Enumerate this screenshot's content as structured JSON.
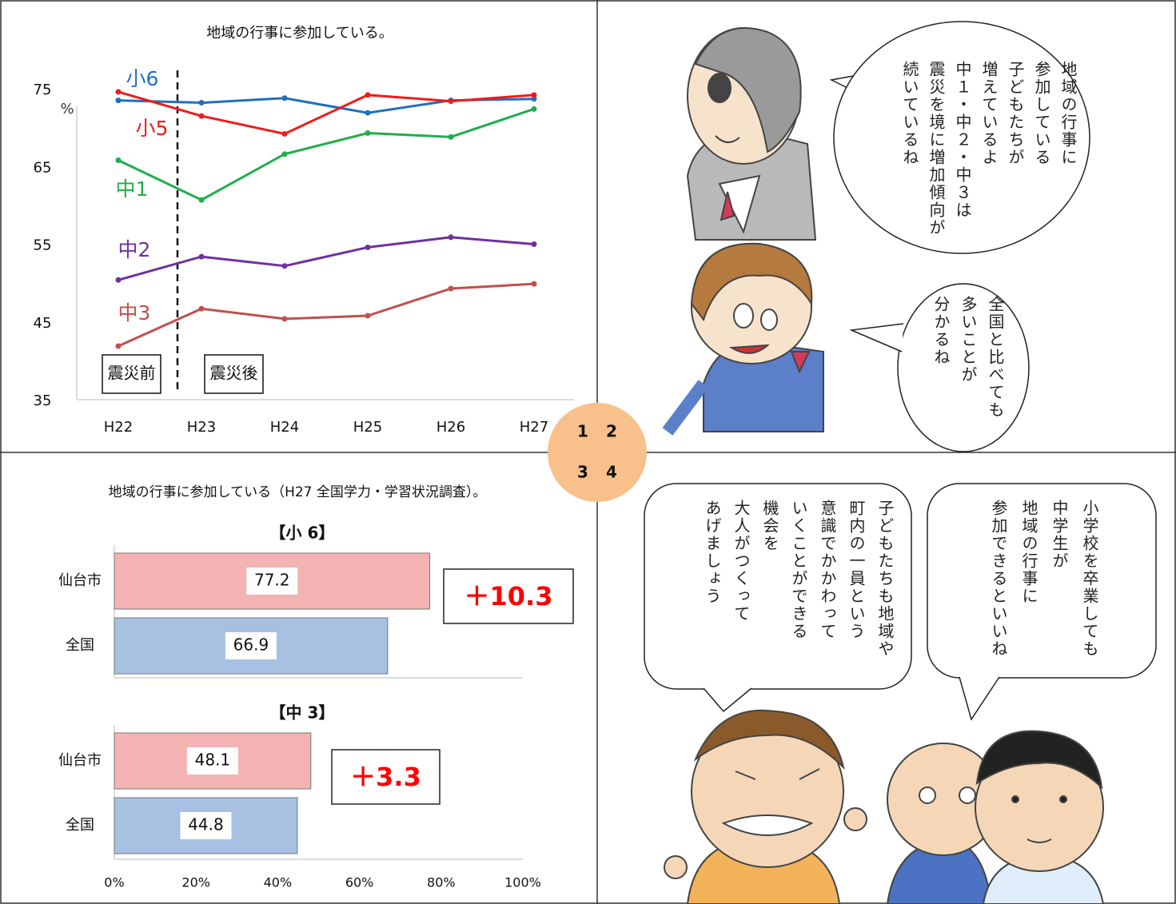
{
  "chart_data": [
    {
      "type": "line",
      "title": "地域の行事に参加している。",
      "y_unit": "%",
      "categories": [
        "H22",
        "H23",
        "H24",
        "H25",
        "H26",
        "H27"
      ],
      "series": [
        {
          "name": "小6",
          "color": "#1f6fbf",
          "values": [
            73.7,
            73.4,
            74.0,
            72.1,
            73.7,
            73.9
          ]
        },
        {
          "name": "小5",
          "color": "#ee1c1c",
          "values": [
            74.8,
            71.7,
            69.4,
            74.4,
            73.6,
            74.4
          ]
        },
        {
          "name": "中1",
          "color": "#1fae4c",
          "values": [
            66.0,
            60.9,
            66.8,
            69.5,
            69.0,
            72.6
          ]
        },
        {
          "name": "中2",
          "color": "#7030a0",
          "values": [
            50.6,
            53.6,
            52.4,
            54.8,
            56.1,
            55.2
          ]
        },
        {
          "name": "中3",
          "color": "#c0504d",
          "values": [
            42.1,
            46.9,
            45.6,
            46.0,
            49.5,
            50.1
          ]
        }
      ],
      "ylim": [
        35,
        75
      ],
      "yticks": [
        35,
        45,
        55,
        65,
        75
      ],
      "annotations": [
        "震災前",
        "震災後"
      ]
    },
    {
      "type": "bar",
      "orientation": "horizontal",
      "title": "地域の行事に参加している（H27 全国学力・学習状況調査）。",
      "subtitle": "【小 6】",
      "categories": [
        "仙台市",
        "全国"
      ],
      "values": [
        77.2,
        66.9
      ],
      "colors": [
        "#f3b3b3",
        "#a8c0e2"
      ],
      "annotation": "＋10.3",
      "xlim": [
        0,
        100
      ]
    },
    {
      "type": "bar",
      "orientation": "horizontal",
      "subtitle": "【中 3】",
      "categories": [
        "仙台市",
        "全国"
      ],
      "values": [
        48.1,
        44.8
      ],
      "colors": [
        "#f3b3b3",
        "#a8c0e2"
      ],
      "annotation": "＋3.3",
      "xlim": [
        0,
        100
      ],
      "xticks": [
        {
          "value": 0,
          "label": "0%"
        },
        {
          "value": 20,
          "label": "20%"
        },
        {
          "value": 40,
          "label": "40%"
        },
        {
          "value": 60,
          "label": "60%"
        },
        {
          "value": 80,
          "label": "80%"
        },
        {
          "value": 100,
          "label": "100%"
        }
      ]
    }
  ],
  "panel_numbers": [
    "1",
    "2",
    "3",
    "4"
  ],
  "bubbles": [
    {
      "lines": [
        "地域の行事に",
        "参加している",
        "子どもたちが",
        "増えているよ",
        "中１・中２・中３は",
        "震災を境に増加傾向が",
        "続いているね"
      ]
    },
    {
      "lines": [
        "全国と比べても",
        "多いことが",
        "分かるね"
      ]
    },
    {
      "lines": [
        "子どもたちも地域や",
        "町内の一員という",
        "意識でかかわって",
        "いくことができる",
        "機会を",
        "大人がつくって",
        "あげましょう"
      ]
    },
    {
      "lines": [
        "小学校を卒業しても",
        "中学生が",
        "地域の行事に",
        "参加できるといいね"
      ]
    }
  ]
}
